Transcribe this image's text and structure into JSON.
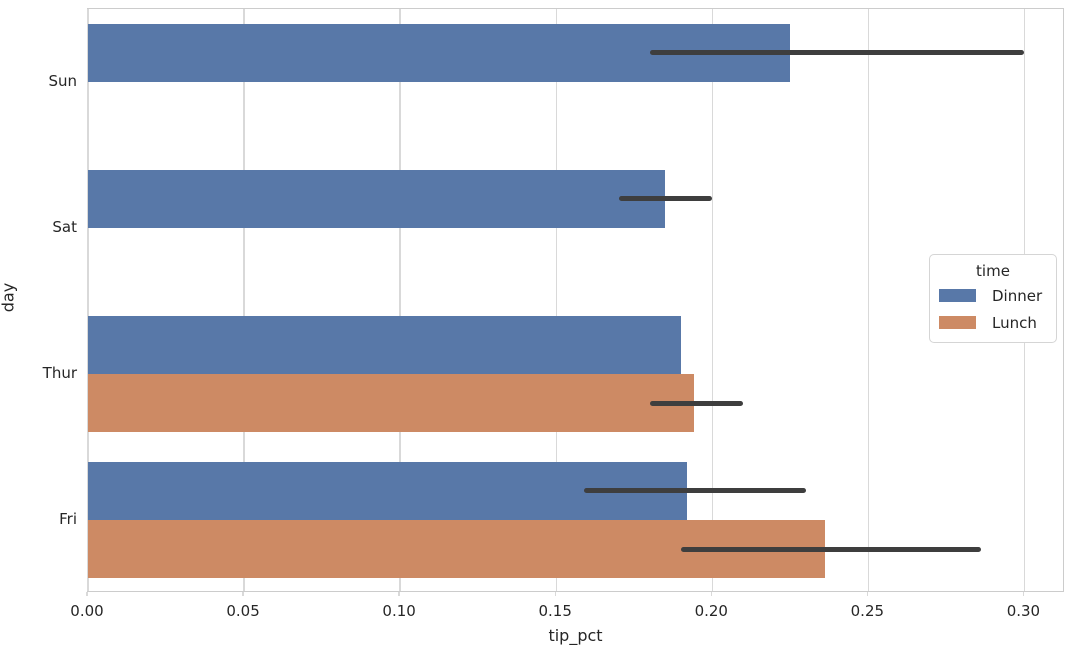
{
  "chart_data": {
    "type": "bar",
    "orientation": "horizontal",
    "title": "",
    "xlabel": "tip_pct",
    "ylabel": "day",
    "categories": [
      "Sun",
      "Sat",
      "Thur",
      "Fri"
    ],
    "series": [
      {
        "name": "Dinner",
        "color": "#5878a8",
        "values": [
          0.225,
          0.185,
          0.19,
          0.192
        ],
        "ci_low": [
          0.18,
          0.17,
          null,
          0.159
        ],
        "ci_high": [
          0.3,
          0.2,
          null,
          0.23
        ]
      },
      {
        "name": "Lunch",
        "color": "#cd8a64",
        "values": [
          null,
          null,
          0.194,
          0.236
        ],
        "ci_low": [
          null,
          null,
          0.18,
          0.19
        ],
        "ci_high": [
          null,
          null,
          0.21,
          0.286
        ]
      }
    ],
    "xlim": [
      0,
      0.313
    ],
    "xticks": [
      0.0,
      0.05,
      0.1,
      0.15,
      0.2,
      0.25,
      0.3
    ],
    "xtick_labels": [
      "0.00",
      "0.05",
      "0.10",
      "0.15",
      "0.20",
      "0.25",
      "0.30"
    ],
    "grid": true,
    "gridline_color": "#d9d9d9",
    "error_bar_color": "#3e3e3e",
    "legend": {
      "title": "time",
      "entries": [
        "Dinner",
        "Lunch"
      ],
      "position": "center-right"
    }
  }
}
